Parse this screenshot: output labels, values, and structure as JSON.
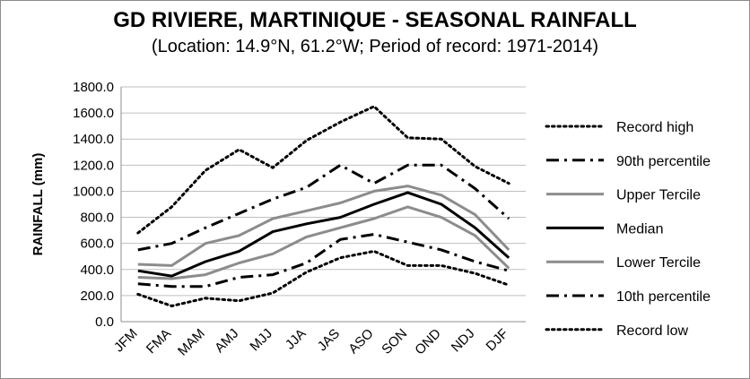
{
  "chart_data": {
    "type": "line",
    "title": "GD RIVIERE, MARTINIQUE - SEASONAL RAINFALL",
    "subtitle": "(Location: 14.9°N, 61.2°W; Period of record: 1971-2014)",
    "xlabel": "",
    "ylabel": "RAINFALL (mm)",
    "ylim": [
      0,
      1800
    ],
    "yticks": [
      "0.0",
      "200.0",
      "400.0",
      "600.0",
      "800.0",
      "1000.0",
      "1200.0",
      "1400.0",
      "1600.0",
      "1800.0"
    ],
    "categories": [
      "JFM",
      "FMA",
      "MAM",
      "AMJ",
      "MJJ",
      "JJA",
      "JAS",
      "ASO",
      "SON",
      "OND",
      "NDJ",
      "DJF"
    ],
    "grid": "horizontal",
    "legend_position": "right",
    "series": [
      {
        "name": "Record high",
        "style": "dotted",
        "color": "#000000",
        "values": [
          680,
          880,
          1160,
          1320,
          1180,
          1390,
          1530,
          1650,
          1410,
          1400,
          1190,
          1060
        ]
      },
      {
        "name": "90th percentile",
        "style": "dashdot",
        "color": "#000000",
        "values": [
          550,
          600,
          720,
          830,
          940,
          1030,
          1200,
          1060,
          1200,
          1200,
          1020,
          790
        ]
      },
      {
        "name": "Upper Tercile",
        "style": "solid",
        "color": "#8c8c8c",
        "values": [
          440,
          430,
          600,
          660,
          790,
          850,
          910,
          1000,
          1040,
          970,
          820,
          550
        ]
      },
      {
        "name": "Median",
        "style": "solid",
        "color": "#000000",
        "values": [
          390,
          350,
          460,
          540,
          690,
          750,
          800,
          900,
          990,
          900,
          720,
          490
        ]
      },
      {
        "name": "Lower Tercile",
        "style": "solid",
        "color": "#8c8c8c",
        "values": [
          340,
          330,
          360,
          450,
          520,
          650,
          720,
          790,
          880,
          800,
          660,
          410
        ]
      },
      {
        "name": "10th percentile",
        "style": "dashdot",
        "color": "#000000",
        "values": [
          290,
          270,
          270,
          340,
          360,
          450,
          630,
          670,
          610,
          550,
          460,
          390
        ]
      },
      {
        "name": "Record low",
        "style": "dotted",
        "color": "#000000",
        "values": [
          210,
          120,
          180,
          160,
          220,
          380,
          490,
          540,
          430,
          430,
          370,
          280
        ]
      }
    ]
  }
}
